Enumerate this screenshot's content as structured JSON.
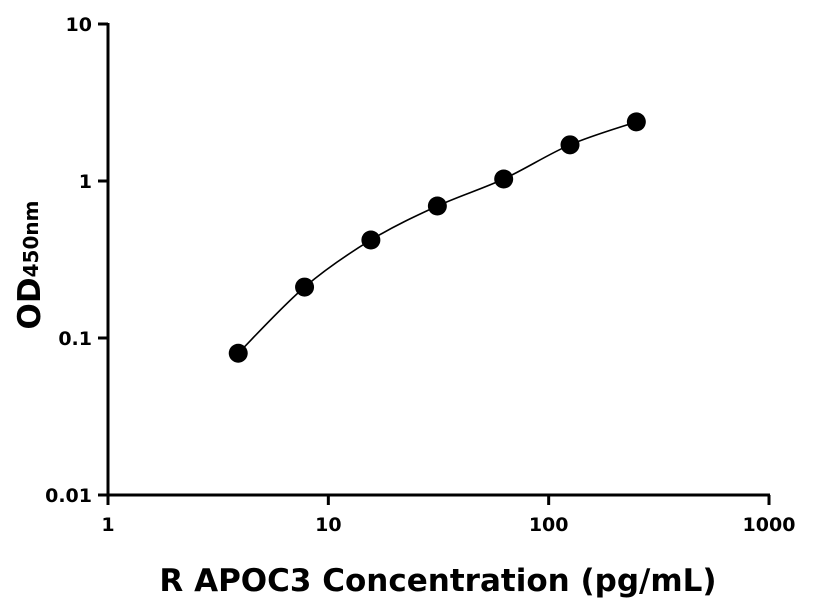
{
  "chart_data": {
    "type": "scatter",
    "x_label": "R APOC3 Concentration (pg/mL)",
    "y_label": "OD",
    "y_label_sub": "450nm",
    "x": [
      3.9,
      7.8,
      15.6,
      31.25,
      62.5,
      125,
      250
    ],
    "series": [
      {
        "color": "#000000",
        "values": [
          0.08,
          0.211,
          0.421,
          0.693,
          1.03,
          1.7,
          2.38
        ]
      }
    ],
    "fit_line": true,
    "xscale": "log",
    "yscale": "log",
    "xlim": [
      1,
      1000
    ],
    "xticks": [
      1,
      10,
      100,
      1000
    ],
    "ylim": [
      0.01,
      10
    ],
    "yticks": [
      0.01,
      0.1,
      1,
      10
    ]
  }
}
